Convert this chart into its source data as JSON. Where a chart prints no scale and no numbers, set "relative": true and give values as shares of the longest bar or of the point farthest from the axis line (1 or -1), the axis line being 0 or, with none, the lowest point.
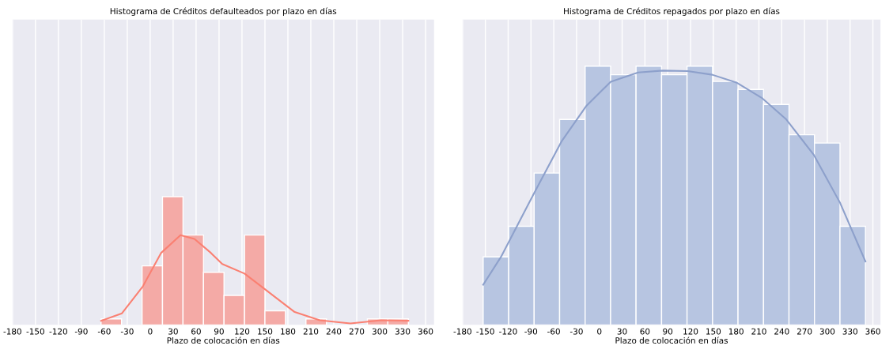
{
  "chart_data": [
    {
      "type": "histogram",
      "title": "Histograma de Créditos defaulteados por plazo en días",
      "xlabel": "Plazo de colocación en días",
      "relative": true,
      "bins": [
        -64.2,
        -37.4,
        -10.6,
        16.1,
        42.9,
        69.7,
        96.5,
        123.3,
        150.0,
        176.8,
        203.6,
        230.4,
        257.2,
        283.9,
        310.7,
        337.5
      ],
      "values": [
        0.047,
        0,
        0.46,
        1,
        0.7,
        0.41,
        0.23,
        0.7,
        0.11,
        0,
        0.047,
        0,
        0,
        0.047,
        0.047
      ],
      "color": "#f4aaa6",
      "series": [
        {
          "type": "line",
          "color": "#fa8072",
          "x": [
            -64.2,
            -36.9,
            -9.6,
            14.1,
            39.6,
            57.8,
            79.6,
            94.2,
            123.3,
            145.2,
            167,
            188.9,
            221.7,
            261.7,
            301.8,
            337.5
          ],
          "values": [
            0.032,
            0.09,
            0.3,
            0.56,
            0.7,
            0.67,
            0.56,
            0.475,
            0.4,
            0.3,
            0.2,
            0.1,
            0.036,
            0.011,
            0.036,
            0.032
          ]
        }
      ],
      "xlim": [
        -180,
        371
      ],
      "xticks": [
        -180,
        -150,
        -120,
        -90,
        -60,
        -30,
        0,
        30,
        60,
        90,
        120,
        150,
        180,
        210,
        240,
        270,
        300,
        330,
        360
      ],
      "grid": "x",
      "tick_labels": "x"
    },
    {
      "type": "histogram",
      "title": "Histograma de Créditos repagados por plazo en días",
      "xlabel": "Plazo de colocación en días",
      "relative": true,
      "bins": [
        -152.9,
        -119.3,
        -85.8,
        -52.3,
        -18.7,
        14.8,
        48.3,
        81.9,
        115.4,
        149.0,
        182.5,
        216.1,
        249.6,
        283.1,
        316.7,
        350.2
      ],
      "values": [
        0.263,
        0.381,
        0.587,
        0.794,
        1,
        0.967,
        1,
        0.967,
        1,
        0.941,
        0.91,
        0.852,
        0.735,
        0.703,
        0.381
      ],
      "color": "#b7c5e1",
      "series": [
        {
          "type": "line",
          "color": "#8da0cb",
          "x": [
            -152.9,
            -129.4,
            -86.1,
            -50.0,
            -17.5,
            15.0,
            51.1,
            83.6,
            116.1,
            148.6,
            181.1,
            213.6,
            246.1,
            282.3,
            316.6,
            350.2
          ],
          "values": [
            0.155,
            0.263,
            0.508,
            0.708,
            0.845,
            0.94,
            0.976,
            0.983,
            0.981,
            0.967,
            0.936,
            0.878,
            0.794,
            0.657,
            0.473,
            0.245
          ]
        }
      ],
      "xlim": [
        -180,
        370
      ],
      "xticks": [
        -180,
        -150,
        -120,
        -90,
        -60,
        -30,
        0,
        30,
        60,
        90,
        120,
        150,
        180,
        210,
        240,
        270,
        300,
        330,
        360
      ],
      "grid": "x",
      "tick_labels": "x"
    }
  ]
}
